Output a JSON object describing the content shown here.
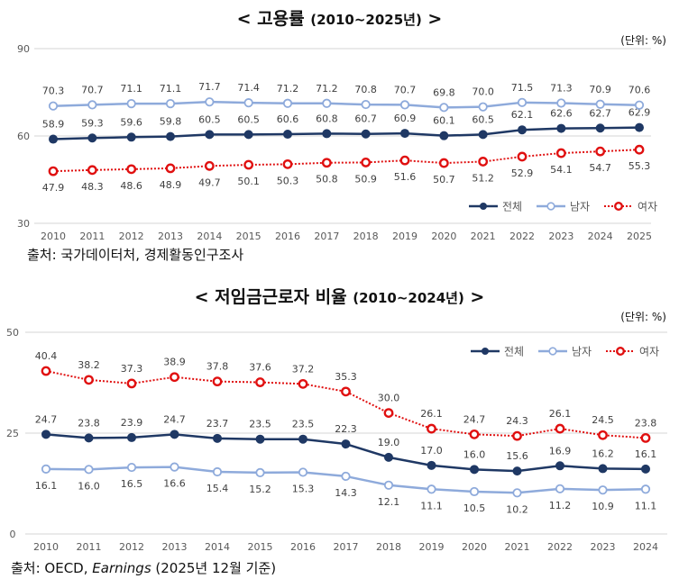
{
  "chart_data": [
    {
      "type": "line",
      "title": "< 고용률 (2010~2025년) >",
      "title_main": "< 고용률 ",
      "title_years": "(2010~2025년)",
      "title_end": " >",
      "unit": "(단위: %)",
      "source": "출처: 국가데이터처, 경제활동인구조사",
      "xlabel": "",
      "ylabel": "",
      "ylim": [
        30,
        90
      ],
      "yticks": [
        30,
        60,
        90
      ],
      "grid": true,
      "legend_position": "bottom-right",
      "x": [
        "2010",
        "2011",
        "2012",
        "2013",
        "2014",
        "2015",
        "2016",
        "2017",
        "2018",
        "2019",
        "2020",
        "2021",
        "2022",
        "2023",
        "2024",
        "2025"
      ],
      "series": [
        {
          "name": "전체",
          "color": "#1f3864",
          "style": "solid",
          "marker": "filled-circle",
          "label_position": "above",
          "values": [
            58.9,
            59.3,
            59.6,
            59.8,
            60.5,
            60.5,
            60.6,
            60.8,
            60.7,
            60.9,
            60.1,
            60.5,
            62.1,
            62.6,
            62.7,
            62.9
          ]
        },
        {
          "name": "남자",
          "color": "#8eaadb",
          "style": "solid",
          "marker": "hollow-circle",
          "label_position": "above",
          "values": [
            70.3,
            70.7,
            71.1,
            71.1,
            71.7,
            71.4,
            71.2,
            71.2,
            70.8,
            70.7,
            69.8,
            70.0,
            71.5,
            71.3,
            70.9,
            70.6
          ]
        },
        {
          "name": "여자",
          "color": "#e01010",
          "style": "dotted",
          "marker": "hollow-circle",
          "label_position": "below",
          "values": [
            47.9,
            48.3,
            48.6,
            48.9,
            49.7,
            50.1,
            50.3,
            50.8,
            50.9,
            51.6,
            50.7,
            51.2,
            52.9,
            54.1,
            54.7,
            55.3
          ]
        }
      ]
    },
    {
      "type": "line",
      "title": "< 저임금근로자 비율 (2010~2024년) >",
      "title_main": "< 저임금근로자 비율 ",
      "title_years": "(2010~2024년)",
      "title_end": " >",
      "unit": "(단위: %)",
      "source_prefix": "출처: OECD, ",
      "source_italic": "Earnings",
      "source_suffix": " (2025년 12월 기준)",
      "xlabel": "",
      "ylabel": "",
      "ylim": [
        0,
        50
      ],
      "yticks": [
        0,
        25,
        50
      ],
      "grid": true,
      "legend_position": "top-right",
      "x": [
        "2010",
        "2011",
        "2012",
        "2013",
        "2014",
        "2015",
        "2016",
        "2017",
        "2018",
        "2019",
        "2020",
        "2021",
        "2022",
        "2023",
        "2024"
      ],
      "series": [
        {
          "name": "전체",
          "color": "#1f3864",
          "style": "solid",
          "marker": "filled-circle",
          "label_position": "above",
          "values": [
            24.7,
            23.8,
            23.9,
            24.7,
            23.7,
            23.5,
            23.5,
            22.3,
            19.0,
            17.0,
            16.0,
            15.6,
            16.9,
            16.2,
            16.1
          ]
        },
        {
          "name": "남자",
          "color": "#8eaadb",
          "style": "solid",
          "marker": "hollow-circle",
          "label_position": "below",
          "values": [
            16.1,
            16.0,
            16.5,
            16.6,
            15.4,
            15.2,
            15.3,
            14.3,
            12.1,
            11.1,
            10.5,
            10.2,
            11.2,
            10.9,
            11.1
          ]
        },
        {
          "name": "여자",
          "color": "#e01010",
          "style": "dotted",
          "marker": "hollow-circle",
          "label_position": "above",
          "values": [
            40.4,
            38.2,
            37.3,
            38.9,
            37.8,
            37.6,
            37.2,
            35.3,
            30.0,
            26.1,
            24.7,
            24.3,
            26.1,
            24.5,
            23.8
          ]
        }
      ]
    }
  ]
}
